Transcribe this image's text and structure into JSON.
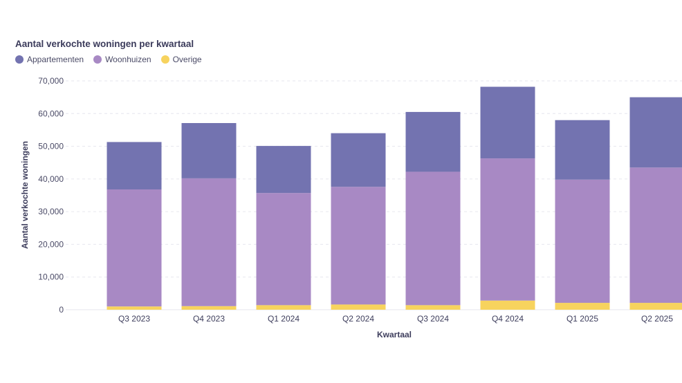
{
  "chart_data": {
    "type": "bar",
    "stacked": true,
    "title": "Aantal verkochte woningen per kwartaal",
    "xlabel": "Kwartaal",
    "ylabel": "Aantal verkochte woningen",
    "ylim": [
      0,
      70000
    ],
    "yticks": [
      0,
      10000,
      20000,
      30000,
      40000,
      50000,
      60000,
      70000
    ],
    "ytick_labels": [
      "0",
      "10,000",
      "20,000",
      "30,000",
      "40,000",
      "50,000",
      "60,000",
      "70,000"
    ],
    "grid": true,
    "legend_position": "top-left",
    "categories": [
      "Q3 2023",
      "Q4 2023",
      "Q1 2024",
      "Q2 2024",
      "Q3 2024",
      "Q4 2024",
      "Q1 2025",
      "Q2 2025"
    ],
    "series": [
      {
        "name": "Overige",
        "color": "#f7d35e",
        "values": [
          1000,
          1100,
          1400,
          1600,
          1400,
          2800,
          2100,
          2100
        ]
      },
      {
        "name": "Woonhuizen",
        "color": "#a889c4",
        "values": [
          35800,
          39100,
          34300,
          36000,
          40800,
          43500,
          37700,
          41400
        ]
      },
      {
        "name": "Appartementen",
        "color": "#7373b0",
        "values": [
          14500,
          16900,
          14400,
          16400,
          18300,
          21900,
          18200,
          21500
        ]
      }
    ]
  },
  "legend_order": [
    "Appartementen",
    "Woonhuizen",
    "Overige"
  ]
}
